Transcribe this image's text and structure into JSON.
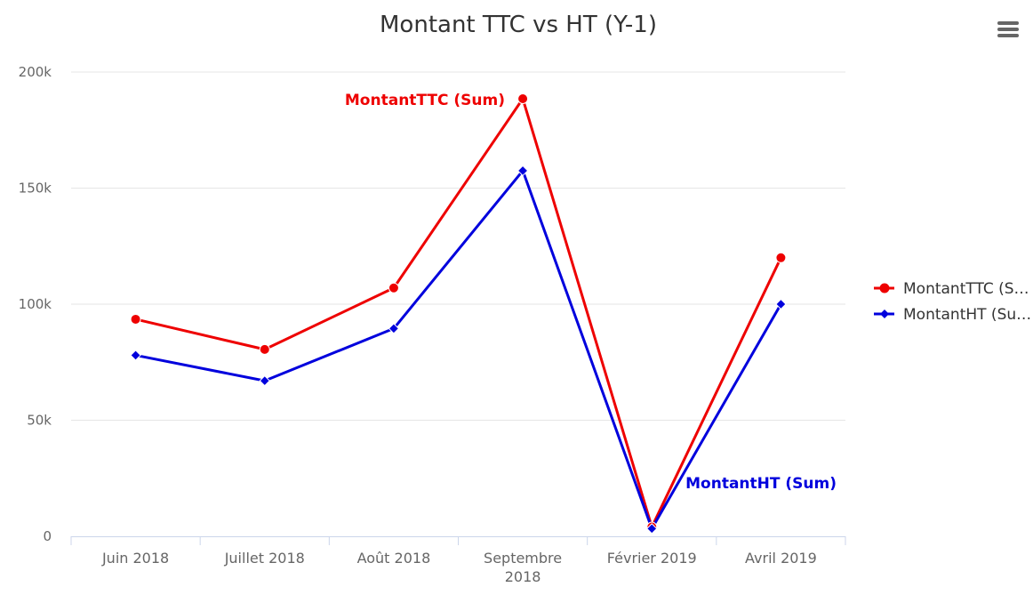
{
  "chart_data": {
    "type": "line",
    "title": "Montant TTC vs HT (Y-1)",
    "categories": [
      "Juin 2018",
      "Juillet 2018",
      "Août 2018",
      "Septembre 2018",
      "Février 2019",
      "Avril 2019"
    ],
    "category_lines": [
      [
        "Juin 2018"
      ],
      [
        "Juillet 2018"
      ],
      [
        "Août 2018"
      ],
      [
        "Septembre",
        "2018"
      ],
      [
        "Février 2019"
      ],
      [
        "Avril 2019"
      ]
    ],
    "ylim": [
      0,
      200000
    ],
    "yticks": [
      0,
      50000,
      100000,
      150000,
      200000
    ],
    "ytick_labels": [
      "0",
      "50k",
      "100k",
      "150k",
      "200k"
    ],
    "grid": true,
    "legend_position": "right",
    "series": [
      {
        "name": "MontantTTC (Sum)",
        "legend_label": "MontantTTC (S…",
        "color": "#ee0000",
        "marker": "circle",
        "values": [
          93500,
          80500,
          107000,
          188500,
          4000,
          120000
        ],
        "annotation": "MontantTTC (Sum)"
      },
      {
        "name": "MontantHT (Sum)",
        "legend_label": "MontantHT (Su…",
        "color": "#0000dd",
        "marker": "diamond",
        "values": [
          78000,
          67000,
          89500,
          157500,
          3300,
          100000
        ],
        "annotation": "MontantHT (Sum)"
      }
    ]
  },
  "ui": {
    "menu_icon": "hamburger-menu-icon"
  }
}
